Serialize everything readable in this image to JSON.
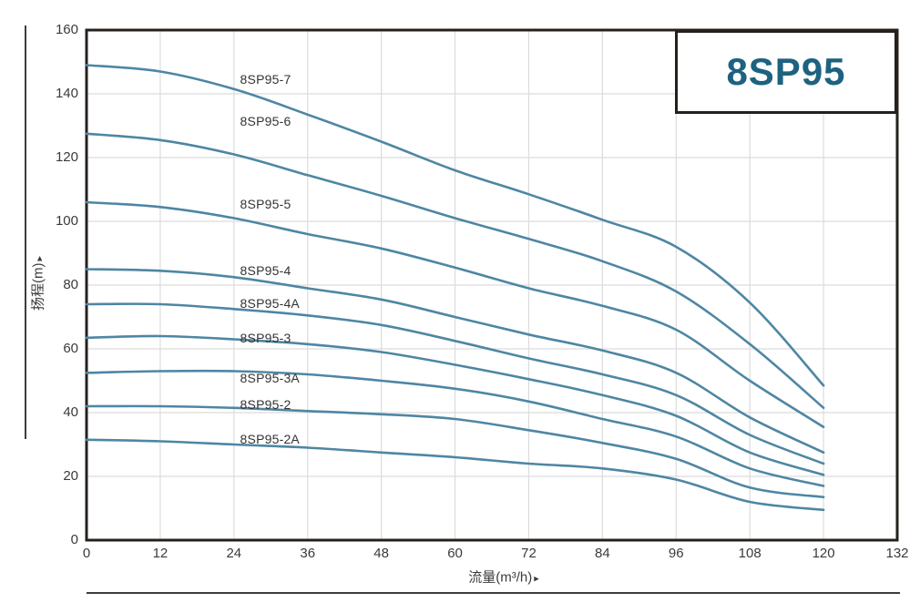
{
  "chart_data": {
    "type": "line",
    "title": "8SP95",
    "xlabel": "流量(m³/h)",
    "xlabel_arrow": "▸",
    "ylabel": "扬程(m)",
    "ylabel_arrow": "▸",
    "xlim": [
      0,
      132
    ],
    "ylim": [
      0,
      160
    ],
    "x_ticks": [
      0,
      12,
      24,
      36,
      48,
      60,
      72,
      84,
      96,
      108,
      120,
      132
    ],
    "y_ticks": [
      0,
      20,
      40,
      60,
      80,
      100,
      120,
      140,
      160
    ],
    "grid": true,
    "legend_position": "none",
    "x": [
      0,
      12,
      24,
      36,
      48,
      60,
      72,
      84,
      96,
      108,
      120
    ],
    "series": [
      {
        "name": "8SP95-7",
        "values": [
          149,
          147,
          141.5,
          133.5,
          125,
          116,
          108.5,
          100.5,
          92,
          74.5,
          48.5
        ],
        "label_at": {
          "x": 25,
          "y": 144.5
        }
      },
      {
        "name": "8SP95-6",
        "values": [
          127.5,
          125.5,
          121,
          114.5,
          108,
          101,
          94.5,
          87.5,
          78,
          61.5,
          41.5
        ],
        "label_at": {
          "x": 25,
          "y": 131.5
        }
      },
      {
        "name": "8SP95-5",
        "values": [
          106,
          104.5,
          101,
          96,
          91.5,
          85.5,
          79,
          73.5,
          66,
          50,
          35.5
        ],
        "label_at": {
          "x": 25,
          "y": 105.5
        }
      },
      {
        "name": "8SP95-4",
        "values": [
          85,
          84.5,
          82.5,
          79,
          75.5,
          70,
          64.5,
          59.5,
          52.5,
          38.5,
          27.5
        ],
        "label_at": {
          "x": 25,
          "y": 84.5
        }
      },
      {
        "name": "8SP95-4A",
        "values": [
          74,
          74,
          72.5,
          70.5,
          67.5,
          62.5,
          57,
          52,
          45.5,
          33,
          24
        ],
        "label_at": {
          "x": 25,
          "y": 74.3
        }
      },
      {
        "name": "8SP95-3",
        "values": [
          63.5,
          64,
          63,
          61.5,
          59,
          55,
          50.5,
          45.5,
          39,
          27.5,
          20.5
        ],
        "label_at": {
          "x": 25,
          "y": 63.5
        }
      },
      {
        "name": "8SP95-3A",
        "values": [
          52.5,
          53,
          53,
          52,
          50,
          47.5,
          43.5,
          38,
          32.5,
          22.5,
          17
        ],
        "label_at": {
          "x": 25,
          "y": 51
        }
      },
      {
        "name": "8SP95-2",
        "values": [
          42,
          42,
          41.5,
          40.5,
          39.5,
          38,
          34.5,
          30.5,
          25.5,
          16.5,
          13.5
        ],
        "label_at": {
          "x": 25,
          "y": 42.5
        }
      },
      {
        "name": "8SP95-2A",
        "values": [
          31.5,
          31,
          30,
          29,
          27.5,
          26,
          24,
          22.5,
          19,
          12,
          9.5
        ],
        "label_at": {
          "x": 25,
          "y": 31.7
        }
      }
    ],
    "colors": {
      "curve": "#4e86a3",
      "title_text": "#1d6280",
      "axis_border": "#26201c",
      "grid": "#dcdcdc",
      "text": "#3a3a3a"
    }
  }
}
